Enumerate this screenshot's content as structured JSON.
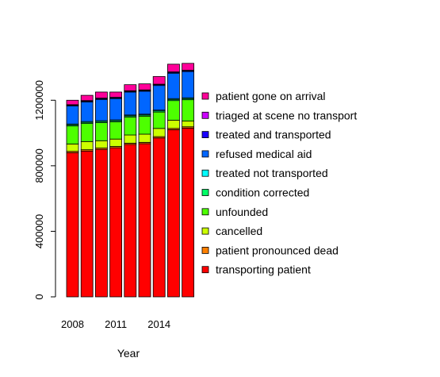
{
  "chart_data": {
    "type": "bar",
    "stacked": true,
    "xlabel": "Year",
    "ylabel": "",
    "ylim": [
      0,
      1400000
    ],
    "yticks": [
      0,
      400000,
      800000,
      1200000
    ],
    "ytick_labels": [
      "0",
      "400000",
      "800000",
      "1200000"
    ],
    "categories": [
      "2008",
      "2009",
      "2010",
      "2011",
      "2012",
      "2013",
      "2014",
      "2015",
      "2016"
    ],
    "xtick_labels": [
      {
        "index": 0,
        "label": "2008"
      },
      {
        "index": 3,
        "label": "2011"
      },
      {
        "index": 6,
        "label": "2014"
      }
    ],
    "grid": false,
    "legend_position": "right",
    "series": [
      {
        "name": "transporting patient",
        "color": "#ff0000",
        "values": [
          880000,
          890000,
          900000,
          910000,
          930000,
          935000,
          970000,
          1020000,
          1030000
        ]
      },
      {
        "name": "patient pronounced dead",
        "color": "#ff8000",
        "values": [
          8000,
          8000,
          8000,
          8000,
          8000,
          8000,
          8000,
          8000,
          8000
        ]
      },
      {
        "name": "cancelled",
        "color": "#ccff00",
        "values": [
          45000,
          50000,
          45000,
          45000,
          50000,
          50000,
          50000,
          50000,
          35000
        ]
      },
      {
        "name": "unfounded",
        "color": "#4dff00",
        "values": [
          110000,
          110000,
          110000,
          105000,
          110000,
          110000,
          100000,
          120000,
          130000
        ]
      },
      {
        "name": "condition corrected",
        "color": "#00ff66",
        "values": [
          7000,
          7000,
          7000,
          7000,
          7000,
          7000,
          7000,
          7000,
          7000
        ]
      },
      {
        "name": "treated not transported",
        "color": "#00ffff",
        "values": [
          5000,
          5000,
          5000,
          5000,
          5000,
          5000,
          5000,
          5000,
          5000
        ]
      },
      {
        "name": "refused medical aid",
        "color": "#0066ff",
        "values": [
          110000,
          120000,
          130000,
          130000,
          140000,
          140000,
          150000,
          155000,
          160000
        ]
      },
      {
        "name": "treated and transported",
        "color": "#1a00ff",
        "values": [
          5000,
          5000,
          5000,
          5000,
          5000,
          5000,
          5000,
          5000,
          5000
        ]
      },
      {
        "name": "triaged at scene no transport",
        "color": "#cc00ff",
        "values": [
          3000,
          3000,
          3000,
          3000,
          3000,
          3000,
          3000,
          3000,
          3000
        ]
      },
      {
        "name": "patient gone on arrival",
        "color": "#ff0099",
        "values": [
          27000,
          32000,
          37000,
          32000,
          37000,
          37000,
          47000,
          47000,
          42000
        ]
      }
    ]
  }
}
